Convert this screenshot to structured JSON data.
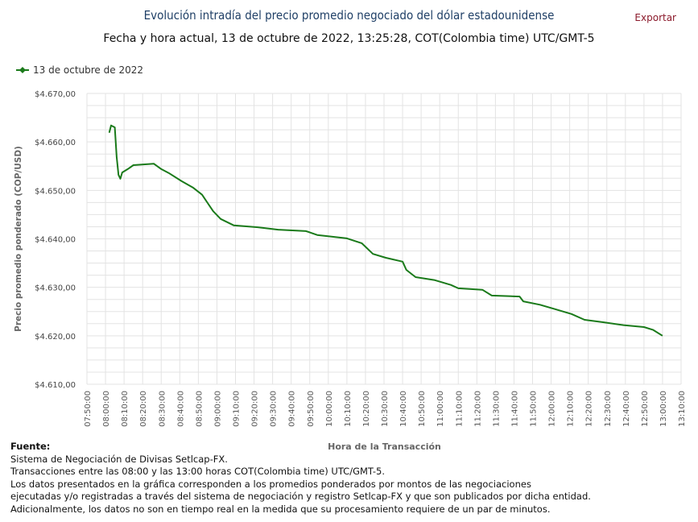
{
  "header": {
    "title": "Evolución intradía del precio promedio negociado del dólar estadounidense",
    "subtitle": "Fecha y hora actual, 13 de octubre de 2022, 13:25:28, COT(Colombia time) UTC/GMT-5",
    "export_label": "Exportar"
  },
  "footer": {
    "heading": "Fuente:",
    "lines": [
      "Sistema de Negociación de Divisas Setlcap-FX.",
      "Transacciones entre las 08:00 y las 13:00 horas COT(Colombia time) UTC/GMT-5.",
      "Los datos presentados en la gráfica corresponden a los promedios ponderados por montos de las negociaciones",
      "ejecutadas y/o registradas a través del sistema de negociación y registro Setlcap-FX y que son publicados por dicha entidad.",
      "Adicionalmente, los datos no son en tiempo real en la medida que su procesamiento requiere de un par de minutos."
    ]
  },
  "colors": {
    "line": "#1a7a1a",
    "title": "#1f3f66",
    "export": "#8b1a2b",
    "grid": "#e3e3e3"
  },
  "chart_data": {
    "type": "line",
    "xlabel": "Hora de la Transacción",
    "ylabel": "Precio promedio ponderado (COP/USD)",
    "xlim": [
      "07:50:00",
      "13:10:00"
    ],
    "ylim": [
      4610,
      4670
    ],
    "grid": true,
    "legend_position": "top-left",
    "xticks": [
      "07:50:00",
      "08:00:00",
      "08:10:00",
      "08:20:00",
      "08:30:00",
      "08:40:00",
      "08:50:00",
      "09:00:00",
      "09:10:00",
      "09:20:00",
      "09:30:00",
      "09:40:00",
      "09:50:00",
      "10:00:00",
      "10:10:00",
      "10:20:00",
      "10:30:00",
      "10:40:00",
      "10:50:00",
      "11:00:00",
      "11:10:00",
      "11:20:00",
      "11:30:00",
      "11:40:00",
      "11:50:00",
      "12:00:00",
      "12:10:00",
      "12:20:00",
      "12:30:00",
      "12:40:00",
      "12:50:00",
      "13:00:00",
      "13:10:00"
    ],
    "yticks": [
      "$4.610,00",
      "$4.620,00",
      "$4.630,00",
      "$4.640,00",
      "$4.650,00",
      "$4.660,00",
      "$4.670,00"
    ],
    "series": [
      {
        "name": "13 de octubre de 2022",
        "x": [
          "08:02",
          "08:03",
          "08:05",
          "08:06",
          "08:07",
          "08:08",
          "08:09",
          "08:12",
          "08:15",
          "08:26",
          "08:30",
          "08:34",
          "08:41",
          "08:47",
          "08:52",
          "08:55",
          "08:58",
          "09:02",
          "09:09",
          "09:22",
          "09:33",
          "09:48",
          "09:54",
          "10:10",
          "10:18",
          "10:24",
          "10:31",
          "10:40",
          "10:42",
          "10:47",
          "10:57",
          "11:06",
          "11:10",
          "11:23",
          "11:28",
          "11:43",
          "11:45",
          "11:54",
          "12:02",
          "12:11",
          "12:18",
          "12:28",
          "12:39",
          "12:50",
          "12:55",
          "13:00"
        ],
        "y": [
          4661.9,
          4663.4,
          4663.0,
          4656.9,
          4653.2,
          4652.4,
          4653.7,
          4654.4,
          4655.2,
          4655.5,
          4654.4,
          4653.6,
          4651.9,
          4650.6,
          4649.1,
          4647.4,
          4645.7,
          4644.1,
          4642.8,
          4642.4,
          4641.9,
          4641.6,
          4640.8,
          4640.1,
          4639.1,
          4636.9,
          4636.1,
          4635.3,
          4633.6,
          4632.1,
          4631.5,
          4630.5,
          4629.8,
          4629.5,
          4628.3,
          4628.1,
          4627.1,
          4626.4,
          4625.5,
          4624.5,
          4623.3,
          4622.8,
          4622.2,
          4621.8,
          4621.2,
          4620.0
        ]
      }
    ]
  }
}
